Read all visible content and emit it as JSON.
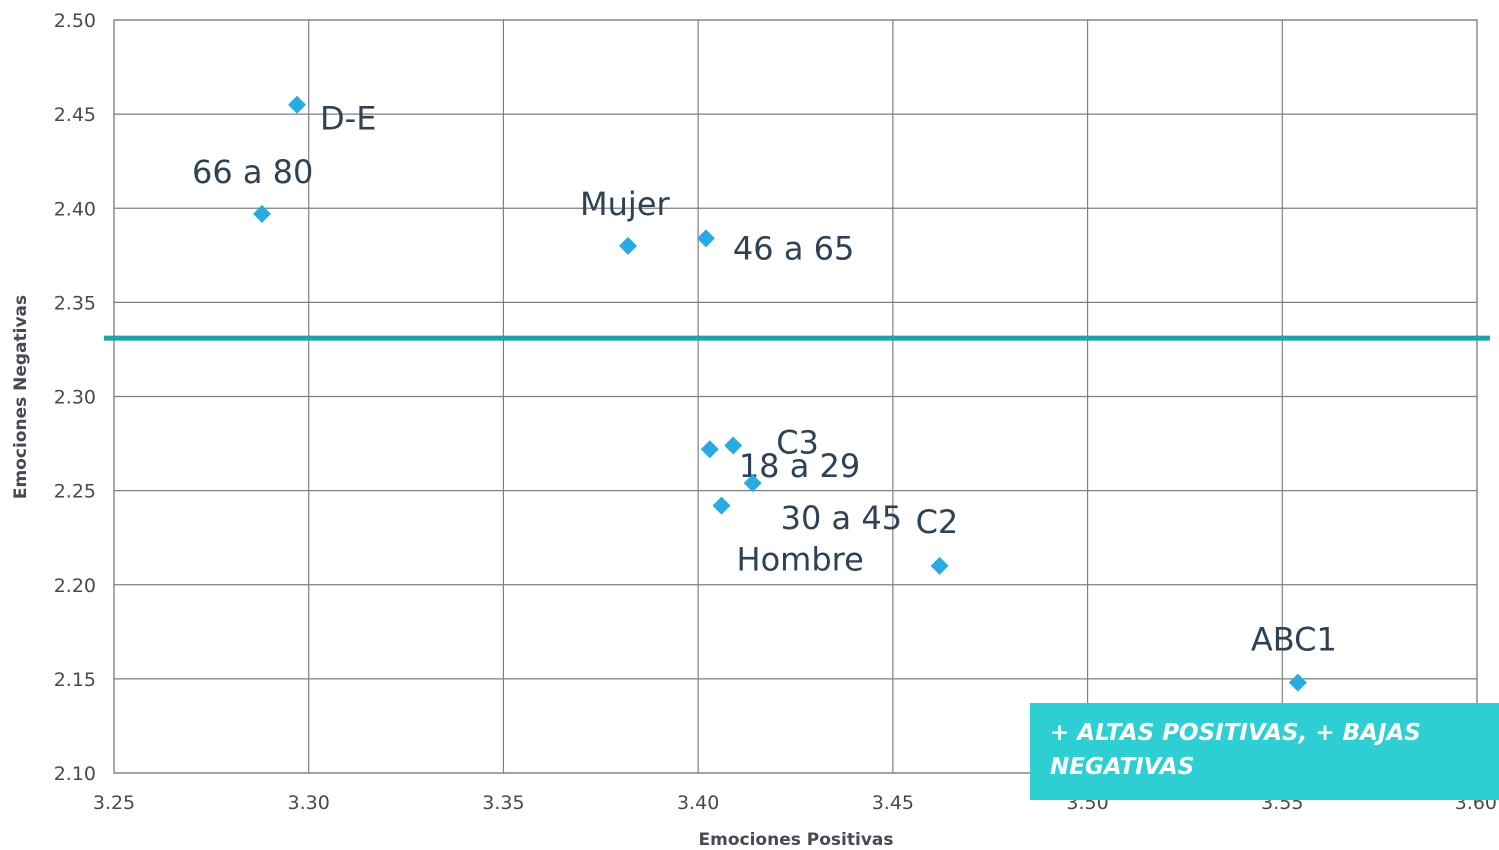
{
  "chart_data": {
    "type": "scatter",
    "xlabel": "Emociones Positivas",
    "ylabel": "Emociones Negativas",
    "xlim": [
      3.25,
      3.6
    ],
    "ylim": [
      2.1,
      2.5
    ],
    "xticks": [
      "3.25",
      "3.30",
      "3.35",
      "3.40",
      "3.45",
      "3.50",
      "3.55",
      "3.60"
    ],
    "yticks": [
      "2.10",
      "2.15",
      "2.20",
      "2.25",
      "2.30",
      "2.35",
      "2.40",
      "2.45",
      "2.50"
    ],
    "grid": true,
    "marker_color": "#29abe2",
    "reference_line": {
      "y": 2.331,
      "color": "#1fa3a8"
    },
    "points": [
      {
        "label": "D-E",
        "x": 3.297,
        "y": 2.455
      },
      {
        "label": "66 a 80",
        "x": 3.288,
        "y": 2.397
      },
      {
        "label": "Mujer",
        "x": 3.382,
        "y": 2.38
      },
      {
        "label": "46 a 65",
        "x": 3.402,
        "y": 2.384
      },
      {
        "label": "C3",
        "x": 3.409,
        "y": 2.274
      },
      {
        "label": "18 a 29",
        "x": 3.403,
        "y": 2.272
      },
      {
        "label": "30 a 45",
        "x": 3.414,
        "y": 2.254
      },
      {
        "label": "Hombre",
        "x": 3.406,
        "y": 2.242
      },
      {
        "label": "C2",
        "x": 3.462,
        "y": 2.21
      },
      {
        "label": "ABC1",
        "x": 3.554,
        "y": 2.148
      }
    ]
  },
  "callout": {
    "text": "+ ALTAS POSITIVAS,  + BAJAS NEGATIVAS",
    "background": "#2ecfd3"
  }
}
